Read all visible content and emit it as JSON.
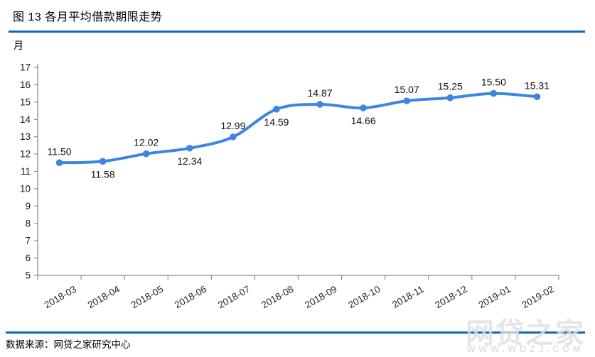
{
  "title": "图 13 各月平均借款期限走势",
  "y_unit": "月",
  "source": "数据来源：网贷之家研究中心",
  "watermark": {
    "main": "网贷之家",
    "sub": "WWW.WDZJ.COM"
  },
  "colors": {
    "line": "#3C86E2",
    "separator": "#1066BE",
    "axis": "#8C8C8C",
    "tick_label": "#1A1A1A",
    "data_label": "#111111"
  },
  "chart_data": {
    "type": "line",
    "title": "图 13 各月平均借款期限走势",
    "categories": [
      "2018-03",
      "2018-04",
      "2018-05",
      "2018-06",
      "2018-07",
      "2018-08",
      "2018-09",
      "2018-10",
      "2018-11",
      "2018-12",
      "2019-01",
      "2019-02"
    ],
    "values": [
      11.5,
      11.58,
      12.02,
      12.34,
      12.99,
      14.59,
      14.87,
      14.66,
      15.07,
      15.25,
      15.5,
      15.31
    ],
    "point_labels": [
      "11.50",
      "11.58",
      "12.02",
      "12.34",
      "12.99",
      "14.59",
      "14.87",
      "14.66",
      "15.07",
      "15.25",
      "15.50",
      "15.31"
    ],
    "label_positions": [
      "above",
      "below",
      "above",
      "below",
      "above",
      "below",
      "above",
      "below",
      "above",
      "above",
      "above",
      "above"
    ],
    "xlabel": "",
    "ylabel": "月",
    "ylim": [
      5,
      17
    ],
    "y_ticks": [
      5,
      6,
      7,
      8,
      9,
      10,
      11,
      12,
      13,
      14,
      15,
      16,
      17
    ],
    "grid": false,
    "legend": "none",
    "smooth": true,
    "x_label_rotation": -30
  }
}
